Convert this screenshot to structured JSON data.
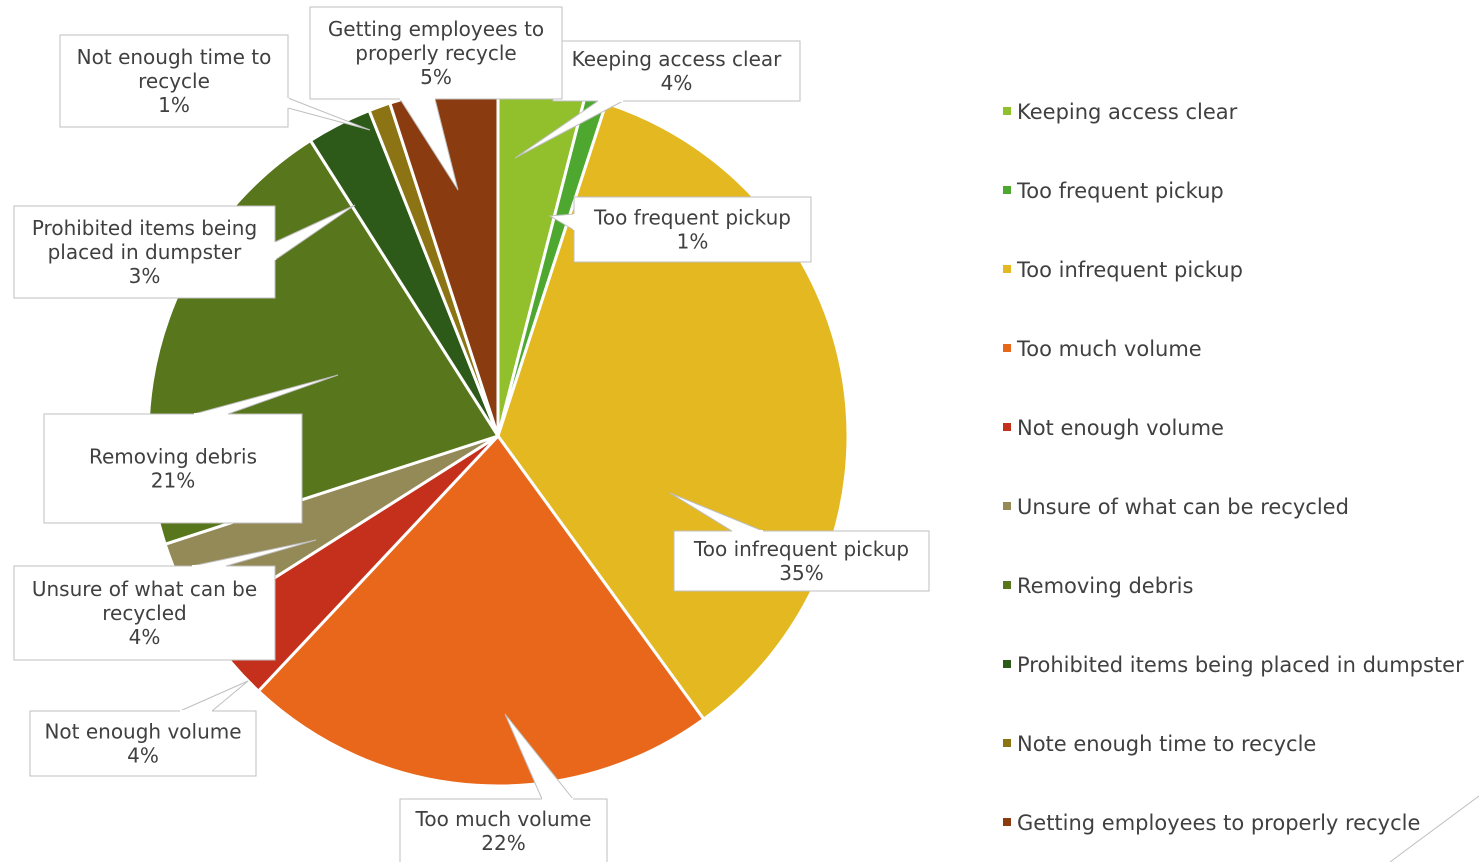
{
  "chart_data": {
    "type": "pie",
    "title": "",
    "slices": [
      {
        "label": "Keeping access clear",
        "legend": "Keeping access clear",
        "value": 4,
        "color": "#92c02d"
      },
      {
        "label": "Too frequent pickup",
        "legend": "Too frequent pickup",
        "value": 1,
        "color": "#4ea72e"
      },
      {
        "label": "Too infrequent pickup",
        "legend": "Too infrequent pickup",
        "value": 35,
        "color": "#e4b820"
      },
      {
        "label": "Too much volume",
        "legend": "Too much volume",
        "value": 22,
        "color": "#e8671a"
      },
      {
        "label": "Not enough volume",
        "legend": "Not enough volume",
        "value": 4,
        "color": "#c4301c"
      },
      {
        "label": "Unsure of what can be recycled",
        "legend": "Unsure of what can be recycled",
        "value": 4,
        "color": "#948a58"
      },
      {
        "label": "Removing debris",
        "legend": "Removing debris",
        "value": 21,
        "color": "#58761c"
      },
      {
        "label": "Prohibited items being placed in dumpster",
        "legend": "Prohibited items being placed in dumpster",
        "value": 3,
        "color": "#2d5a18"
      },
      {
        "label": "Not enough time to recycle",
        "legend": "Note enough time to recycle",
        "value": 1,
        "color": "#8c7314"
      },
      {
        "label": "Getting employees to properly recycle",
        "legend": "Getting employees to properly recycle",
        "value": 5,
        "color": "#8a3c10"
      }
    ],
    "legend_position": "right"
  },
  "callouts": [
    {
      "lines": [
        "Keeping access clear",
        "4%"
      ]
    },
    {
      "lines": [
        "Too frequent pickup",
        "1%"
      ]
    },
    {
      "lines": [
        "Too infrequent pickup",
        "35%"
      ]
    },
    {
      "lines": [
        "Too much volume",
        "22%"
      ]
    },
    {
      "lines": [
        "Not enough volume",
        "4%"
      ]
    },
    {
      "lines": [
        "Unsure of what can be",
        "recycled",
        "4%"
      ]
    },
    {
      "lines": [
        "Removing debris",
        "21%"
      ]
    },
    {
      "lines": [
        "Prohibited items being",
        "placed in dumpster",
        "3%"
      ]
    },
    {
      "lines": [
        "Not enough time to",
        "recycle",
        "1%"
      ]
    },
    {
      "lines": [
        "Getting employees to",
        "properly recycle",
        "5%"
      ]
    }
  ]
}
